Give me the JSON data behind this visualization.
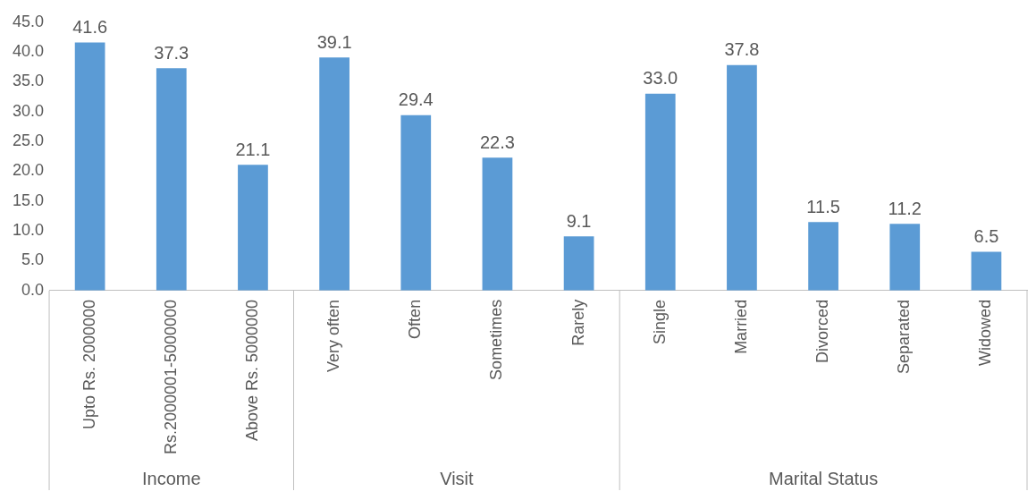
{
  "chart_data": {
    "type": "bar",
    "categories": [
      "Upto Rs. 2000000",
      "Rs.2000001-5000000",
      "Above Rs. 5000000",
      "Very often",
      "Often",
      "Sometimes",
      "Rarely",
      "Single",
      "Married",
      "Divorced",
      "Separated",
      "Widowed"
    ],
    "values": [
      41.6,
      37.3,
      21.1,
      39.1,
      29.4,
      22.3,
      9.1,
      33.0,
      37.8,
      11.5,
      11.2,
      6.5
    ],
    "value_labels": [
      "41.6",
      "37.3",
      "21.1",
      "39.1",
      "29.4",
      "22.3",
      "9.1",
      "33.0",
      "37.8",
      "11.5",
      "11.2",
      "6.5"
    ],
    "color": "#5b9bd5",
    "ylim": [
      0,
      45
    ],
    "yticks": [
      {
        "value": 0,
        "label": "0.0"
      },
      {
        "value": 5,
        "label": "5.0"
      },
      {
        "value": 10,
        "label": "10.0"
      },
      {
        "value": 15,
        "label": "15.0"
      },
      {
        "value": 20,
        "label": "20.0"
      },
      {
        "value": 25,
        "label": "25.0"
      },
      {
        "value": 30,
        "label": "30.0"
      },
      {
        "value": 35,
        "label": "35.0"
      },
      {
        "value": 40,
        "label": "40.0"
      },
      {
        "value": 45,
        "label": "45.0"
      }
    ],
    "grid": false,
    "legend": false,
    "annotations": [
      "Income",
      "Visit",
      "Marital Status"
    ]
  }
}
